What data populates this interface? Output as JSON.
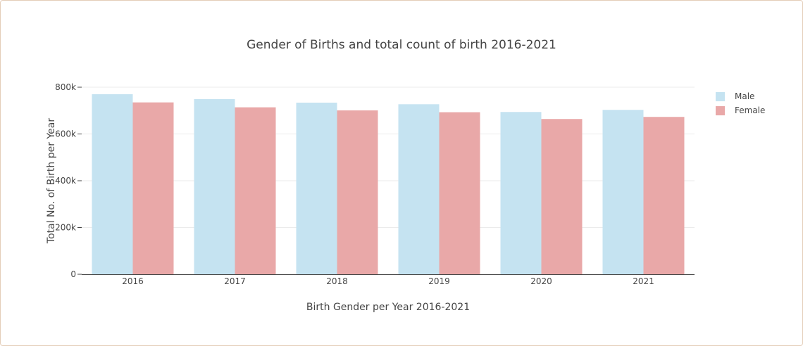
{
  "chart_data": {
    "type": "bar",
    "title": "Gender of Births and total count of birth 2016-2021",
    "xlabel": "Birth Gender per Year 2016-2021",
    "ylabel": "Total No. of Birth per Year",
    "categories": [
      "2016",
      "2017",
      "2018",
      "2019",
      "2020",
      "2021"
    ],
    "series": [
      {
        "name": "Male",
        "values": [
          770000,
          749000,
          734000,
          727000,
          694000,
          703000
        ],
        "color": "#c5e3f1"
      },
      {
        "name": "Female",
        "values": [
          735000,
          714000,
          701000,
          693000,
          664000,
          673000
        ],
        "color": "#e9a8a8"
      }
    ],
    "ylim": [
      0,
      800000
    ],
    "yticks": [
      0,
      200000,
      400000,
      600000,
      800000
    ],
    "ytick_labels": [
      "0",
      "200k",
      "400k",
      "600k",
      "800k"
    ],
    "grid": true,
    "legend_position": "top-right"
  }
}
